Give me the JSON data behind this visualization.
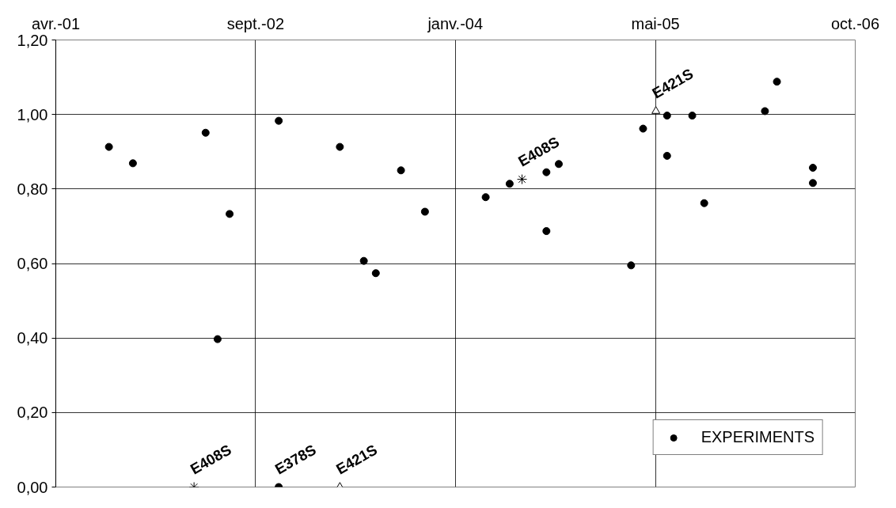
{
  "chart_data": {
    "type": "scatter",
    "xlim": [
      "2001-04-20",
      "2006-10-12"
    ],
    "xticks": [
      {
        "value": "2001-04-20",
        "label": "avr.-01"
      },
      {
        "value": "2002-09-02",
        "label": "sept.-02"
      },
      {
        "value": "2004-01-15",
        "label": "janv.-04"
      },
      {
        "value": "2005-05-30",
        "label": "mai-05"
      },
      {
        "value": "2006-10-12",
        "label": "oct.-06"
      }
    ],
    "ylim": [
      0,
      1.2
    ],
    "yticks": [
      {
        "value": 0,
        "label": "0,00"
      },
      {
        "value": 0.2,
        "label": "0,20"
      },
      {
        "value": 0.4,
        "label": "0,40"
      },
      {
        "value": 0.6,
        "label": "0,60"
      },
      {
        "value": 0.8,
        "label": "0,80"
      },
      {
        "value": 1.0,
        "label": "1,00"
      },
      {
        "value": 1.2,
        "label": "1,20"
      }
    ],
    "grid": true,
    "legend": "bottom right",
    "series": [
      {
        "name": "EXPERIMENTS",
        "color": "#000000",
        "marker": "circle",
        "x": [
          "2001-08-31",
          "2001-10-30",
          "2002-04-30",
          "2002-05-30",
          "2002-06-29",
          "2002-10-30",
          "2002-10-30",
          "2003-04-01",
          "2003-05-31",
          "2003-06-30",
          "2003-09-01",
          "2003-10-31",
          "2004-03-31",
          "2004-05-30",
          "2004-08-30",
          "2004-08-30",
          "2004-09-30",
          "2005-03-30",
          "2005-04-29",
          "2005-06-28",
          "2005-06-28",
          "2005-08-30",
          "2005-09-29",
          "2006-02-28",
          "2006-03-30",
          "2006-06-28",
          "2006-06-28"
        ],
        "values": [
          0.913,
          0.869,
          0.951,
          0.397,
          0.733,
          0.983,
          0,
          0.913,
          0.607,
          0.574,
          0.85,
          0.739,
          0.778,
          0.814,
          0.845,
          0.687,
          0.867,
          0.595,
          0.962,
          0.997,
          0.889,
          0.997,
          0.762,
          1.009,
          1.088,
          0.857,
          0.816
        ]
      },
      {
        "color": "#000000",
        "marker": "cross",
        "x": [
          "2002-04-01",
          "2004-06-30"
        ],
        "values": [
          0,
          0.826
        ]
      },
      {
        "color": "#000000",
        "marker": "triangle",
        "x": [
          "2003-04-01",
          "2005-05-31"
        ],
        "values": [
          0,
          1.009
        ]
      }
    ],
    "annotations": [
      {
        "text": "E408S",
        "x": "2002-04-01",
        "y": 0
      },
      {
        "text": "E378S",
        "x": "2002-10-30",
        "y": 0
      },
      {
        "text": "E421S",
        "x": "2003-04-01",
        "y": 0
      },
      {
        "text": "E408S",
        "x": "2004-06-30",
        "y": 0.826
      },
      {
        "text": "E421S",
        "x": "2005-05-31",
        "y": 1.009
      }
    ]
  }
}
